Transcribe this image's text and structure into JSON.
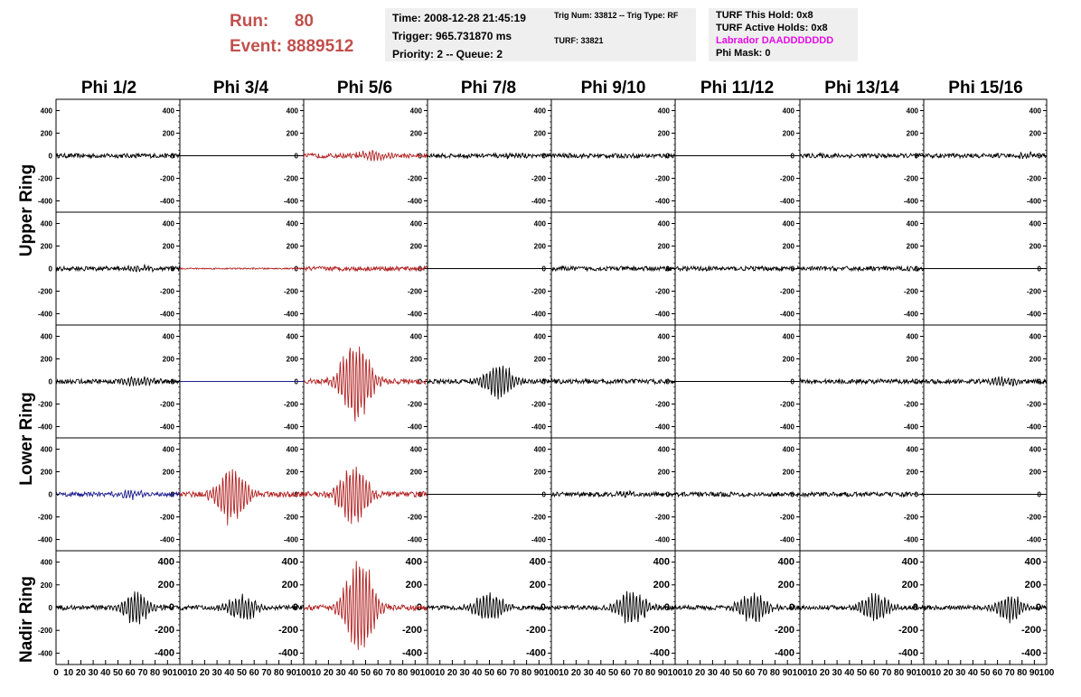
{
  "header": {
    "run_label": "Run:",
    "run_value": "80",
    "event_label": "Event:",
    "event_value": "8889512",
    "time": "Time: 2008-12-28 21:45:19",
    "trigger": "Trigger: 965.731870 ms",
    "priority": "Priority: 2 -- Queue: 2",
    "trig_num": "Trig Num: 33812 -- Trig Type: RF",
    "turf": "TURF: 33821",
    "turf_hold": "TURF This Hold: 0x8",
    "turf_active": "TURF Active Holds: 0x8",
    "labrador": "Labrador DAADDDDDDD",
    "phi_mask": "Phi Mask: 0"
  },
  "columns": [
    "Phi 1/2",
    "Phi 3/4",
    "Phi 5/6",
    "Phi 7/8",
    "Phi 9/10",
    "Phi 11/12",
    "Phi 13/14",
    "Phi 15/16"
  ],
  "row_labels": [
    "Upper Ring",
    "Lower Ring",
    "Nadir Ring"
  ],
  "y_ticks": [
    "400",
    "200",
    "0",
    "-200",
    "-400"
  ],
  "x_ticks_text": [
    "0",
    "10",
    "20",
    "30",
    "40",
    "50",
    "60",
    "70",
    "80",
    "90",
    "100"
  ],
  "colors": {
    "header_red": "#c0504d",
    "trace_red": "#b22222",
    "trace_blue": "#1f1f8f",
    "trace_black": "#000000",
    "labrador_magenta": "#e60ce6"
  },
  "chart_data": {
    "type": "line",
    "xlim": [
      0,
      100
    ],
    "ylim": [
      -500,
      500
    ],
    "panels": [
      [
        {
          "color": "black",
          "amp": 10,
          "burst": 0,
          "center": 0
        },
        {
          "color": "black",
          "amp": 0,
          "burst": 0,
          "center": 0
        },
        {
          "color": "red",
          "amp": 10,
          "burst": 45,
          "center": 55
        },
        {
          "color": "black",
          "amp": 10,
          "burst": 20,
          "center": 65
        },
        {
          "color": "black",
          "amp": 10,
          "burst": 0,
          "center": 0
        },
        {
          "color": "black",
          "amp": 0,
          "burst": 0,
          "center": 0
        },
        {
          "color": "black",
          "amp": 10,
          "burst": 0,
          "center": 0
        },
        {
          "color": "black",
          "amp": 10,
          "burst": 20,
          "center": 85
        }
      ],
      [
        {
          "color": "black",
          "amp": 10,
          "burst": 20,
          "center": 70
        },
        {
          "color": "red",
          "amp": 3,
          "burst": 0,
          "center": 0
        },
        {
          "color": "red",
          "amp": 10,
          "burst": 0,
          "center": 0
        },
        {
          "color": "black",
          "amp": 0,
          "burst": 0,
          "center": 0
        },
        {
          "color": "black",
          "amp": 10,
          "burst": 0,
          "center": 0
        },
        {
          "color": "black",
          "amp": 10,
          "burst": 0,
          "center": 0
        },
        {
          "color": "black",
          "amp": 10,
          "burst": 0,
          "center": 0
        },
        {
          "color": "black",
          "amp": 0,
          "burst": 0,
          "center": 0
        }
      ],
      [
        {
          "color": "black",
          "amp": 10,
          "burst": 40,
          "center": 68
        },
        {
          "color": "blue",
          "amp": 0,
          "burst": 0,
          "center": 0
        },
        {
          "color": "red",
          "amp": 12,
          "burst": 450,
          "center": 42
        },
        {
          "color": "black",
          "amp": 10,
          "burst": 180,
          "center": 57
        },
        {
          "color": "black",
          "amp": 10,
          "burst": 0,
          "center": 0
        },
        {
          "color": "black",
          "amp": 0,
          "burst": 0,
          "center": 0
        },
        {
          "color": "black",
          "amp": 10,
          "burst": 0,
          "center": 0
        },
        {
          "color": "black",
          "amp": 10,
          "burst": 40,
          "center": 65
        }
      ],
      [
        {
          "color": "blue",
          "amp": 10,
          "burst": 40,
          "center": 60
        },
        {
          "color": "red",
          "amp": 12,
          "burst": 300,
          "center": 42
        },
        {
          "color": "red",
          "amp": 12,
          "burst": 300,
          "center": 40
        },
        {
          "color": "black",
          "amp": 0,
          "burst": 0,
          "center": 0
        },
        {
          "color": "black",
          "amp": 10,
          "burst": 20,
          "center": 60
        },
        {
          "color": "black",
          "amp": 10,
          "burst": 0,
          "center": 0
        },
        {
          "color": "black",
          "amp": 10,
          "burst": 0,
          "center": 0
        },
        {
          "color": "black",
          "amp": 0,
          "burst": 0,
          "center": 0
        }
      ],
      [
        {
          "color": "black",
          "amp": 10,
          "burst": 150,
          "center": 65
        },
        {
          "color": "black",
          "amp": 10,
          "burst": 130,
          "center": 50
        },
        {
          "color": "red",
          "amp": 12,
          "burst": 500,
          "center": 45
        },
        {
          "color": "black",
          "amp": 10,
          "burst": 150,
          "center": 50
        },
        {
          "color": "black",
          "amp": 10,
          "burst": 170,
          "center": 65
        },
        {
          "color": "black",
          "amp": 10,
          "burst": 150,
          "center": 62
        },
        {
          "color": "black",
          "amp": 10,
          "burst": 140,
          "center": 60
        },
        {
          "color": "black",
          "amp": 10,
          "burst": 130,
          "center": 70
        }
      ]
    ]
  }
}
